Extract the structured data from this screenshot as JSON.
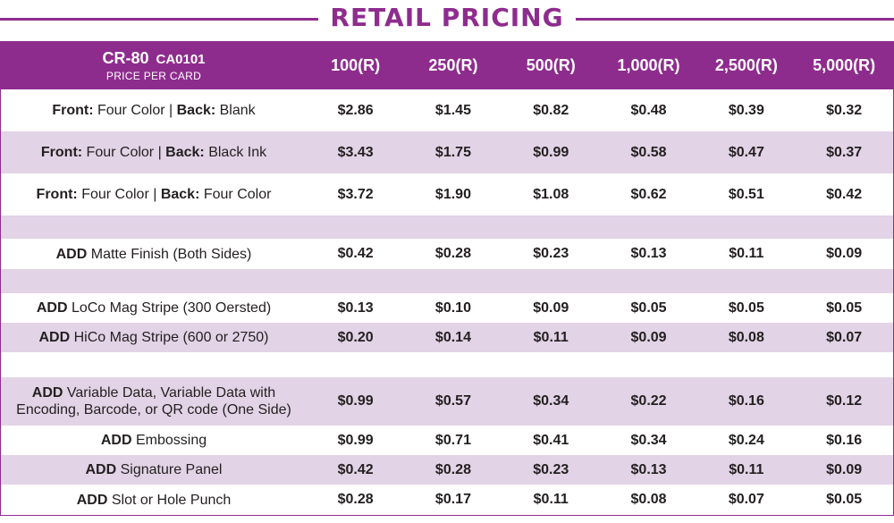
{
  "title": "RETAIL PRICING",
  "header": {
    "product": "CR-80",
    "code": "CA0101",
    "sub": "PRICE PER CARD",
    "columns": [
      "100(R)",
      "250(R)",
      "500(R)",
      "1,000(R)",
      "2,500(R)",
      "5,000(R)"
    ]
  },
  "colors": {
    "accent": "#8e2c8e",
    "band": "#e2d3e6"
  },
  "rows": [
    {
      "bold1": "Front:",
      "text1": " Four Color | ",
      "bold2": "Back:",
      "text2": " Blank",
      "values": [
        "$2.86",
        "$1.45",
        "$0.82",
        "$0.48",
        "$0.39",
        "$0.32"
      ]
    },
    {
      "bold1": "Front:",
      "text1": " Four Color | ",
      "bold2": "Back:",
      "text2": " Black Ink",
      "values": [
        "$3.43",
        "$1.75",
        "$0.99",
        "$0.58",
        "$0.47",
        "$0.37"
      ]
    },
    {
      "bold1": "Front:",
      "text1": " Four Color | ",
      "bold2": "Back:",
      "text2": " Four Color",
      "values": [
        "$3.72",
        "$1.90",
        "$1.08",
        "$0.62",
        "$0.51",
        "$0.42"
      ]
    },
    {
      "bold1": "ADD",
      "text1": " Matte Finish (Both Sides)",
      "values": [
        "$0.42",
        "$0.28",
        "$0.23",
        "$0.13",
        "$0.11",
        "$0.09"
      ]
    },
    {
      "bold1": "ADD",
      "text1": " LoCo Mag Stripe (300 Oersted)",
      "values": [
        "$0.13",
        "$0.10",
        "$0.09",
        "$0.05",
        "$0.05",
        "$0.05"
      ]
    },
    {
      "bold1": "ADD",
      "text1": " HiCo Mag Stripe (600 or 2750)",
      "values": [
        "$0.20",
        "$0.14",
        "$0.11",
        "$0.09",
        "$0.08",
        "$0.07"
      ]
    },
    {
      "bold1": "ADD",
      "text1": " Variable Data, Variable Data with",
      "line2": "Encoding, Barcode, or QR code (One Side)",
      "values": [
        "$0.99",
        "$0.57",
        "$0.34",
        "$0.22",
        "$0.16",
        "$0.12"
      ]
    },
    {
      "bold1": "ADD",
      "text1": " Embossing",
      "values": [
        "$0.99",
        "$0.71",
        "$0.41",
        "$0.34",
        "$0.24",
        "$0.16"
      ]
    },
    {
      "bold1": "ADD",
      "text1": " Signature Panel",
      "values": [
        "$0.42",
        "$0.28",
        "$0.23",
        "$0.13",
        "$0.11",
        "$0.09"
      ]
    },
    {
      "bold1": "ADD",
      "text1": " Slot or Hole Punch",
      "values": [
        "$0.28",
        "$0.17",
        "$0.11",
        "$0.08",
        "$0.07",
        "$0.05"
      ]
    }
  ]
}
